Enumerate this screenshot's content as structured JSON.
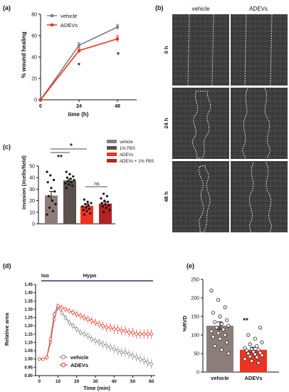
{
  "chart_data": [
    {
      "panel": "(a)",
      "type": "line",
      "xlabel": "time (h)",
      "ylabel": "% wound healing",
      "x": [
        0,
        24,
        48
      ],
      "xlim": [
        0,
        60
      ],
      "ylim": [
        0,
        80
      ],
      "xticks": [
        "0",
        "24",
        "48"
      ],
      "yticks": [
        "0",
        "20",
        "40",
        "60",
        "80"
      ],
      "legend_position": "top-left",
      "series": [
        {
          "name": "vehicle",
          "color": "#808080",
          "values": [
            0,
            51,
            68
          ],
          "err": [
            0,
            2.5,
            2.5
          ]
        },
        {
          "name": "ADEVs",
          "color": "#ee3322",
          "values": [
            0,
            46,
            57
          ],
          "err": [
            0,
            2.5,
            3
          ]
        }
      ],
      "annotations": [
        "*",
        "*"
      ]
    },
    {
      "panel": "(b)",
      "type": "image_grid",
      "columns": [
        "vehicle",
        "ADEVs"
      ],
      "rows": [
        "0 h",
        "24 h",
        "48 h"
      ]
    },
    {
      "panel": "(c)",
      "type": "bar",
      "ylabel": "invasion (#cells/field)",
      "ylim": [
        0,
        50
      ],
      "yticks": [
        "0",
        "10",
        "20",
        "30",
        "40",
        "50"
      ],
      "legend_position": "top-right",
      "categories": [
        "vehicle",
        "1% FBS",
        "ADEVs",
        "ADEVs + 1% FBS"
      ],
      "colors": [
        "#8c7d78",
        "#5a504c",
        "#ee3322",
        "#b32323"
      ],
      "values": [
        24.5,
        37.5,
        15.5,
        17.5
      ],
      "err": [
        3.5,
        1.2,
        1.8,
        1.5
      ],
      "points": [
        [
          45,
          42,
          38,
          36,
          31,
          28,
          24,
          20,
          17,
          14,
          11,
          8
        ],
        [
          45,
          43,
          41,
          40,
          39,
          38,
          37,
          36,
          35,
          34,
          33,
          31
        ],
        [
          21,
          19,
          18,
          17,
          16,
          15,
          14,
          13,
          12,
          11,
          9,
          8
        ],
        [
          26,
          24,
          22,
          20,
          19,
          18,
          17,
          16,
          15,
          14,
          12,
          10
        ]
      ],
      "annotations": [
        {
          "text": "**"
        },
        {
          "text": "*"
        },
        {
          "text": "ns"
        }
      ]
    },
    {
      "panel": "(d)",
      "type": "line",
      "xlabel": "Time (min)",
      "ylabel": "Relative area",
      "xlim": [
        -2,
        62
      ],
      "ylim": [
        0.9,
        1.45
      ],
      "xticks": [
        "0",
        "10",
        "20",
        "30",
        "40",
        "50",
        "60"
      ],
      "yticks": [
        "0.90",
        "0.95",
        "1.00",
        "1.05",
        "1.10",
        "1.15",
        "1.20",
        "1.25",
        "1.30",
        "1.35",
        "1.40",
        "1.45"
      ],
      "legend_position": "bottom-left",
      "condition_bar": {
        "labels": [
          "Iso",
          "Hypo"
        ],
        "color": "#3a2a8a"
      },
      "x": [
        0,
        2,
        4,
        6,
        8,
        10,
        12,
        14,
        16,
        18,
        20,
        22,
        24,
        26,
        28,
        30,
        32,
        34,
        36,
        38,
        40,
        42,
        44,
        46,
        48,
        50,
        52,
        54,
        56,
        58,
        60
      ],
      "series": [
        {
          "name": "vehicle",
          "color": "#808080",
          "values": [
            1.0,
            1.0,
            1.01,
            1.1,
            1.24,
            1.31,
            1.28,
            1.25,
            1.22,
            1.2,
            1.18,
            1.16,
            1.15,
            1.14,
            1.12,
            1.11,
            1.1,
            1.09,
            1.08,
            1.07,
            1.06,
            1.05,
            1.04,
            1.04,
            1.03,
            1.02,
            1.01,
            1.0,
            0.99,
            0.98,
            0.97
          ]
        },
        {
          "name": "ADEVs",
          "color": "#ee3322",
          "values": [
            1.0,
            1.0,
            1.01,
            1.12,
            1.27,
            1.32,
            1.31,
            1.3,
            1.29,
            1.28,
            1.27,
            1.26,
            1.25,
            1.24,
            1.23,
            1.22,
            1.21,
            1.2,
            1.19,
            1.19,
            1.18,
            1.18,
            1.17,
            1.17,
            1.16,
            1.16,
            1.15,
            1.15,
            1.15,
            1.15,
            1.15
          ]
        }
      ]
    },
    {
      "panel": "(e)",
      "type": "bar",
      "ylabel": "%RVD",
      "ylim": [
        0,
        250
      ],
      "yticks": [
        "0",
        "50",
        "100",
        "150",
        "200",
        "250"
      ],
      "categories": [
        "vehicle",
        "ADEVs"
      ],
      "colors": [
        "#8c7d78",
        "#ee3322"
      ],
      "values": [
        125,
        60
      ],
      "err": [
        10,
        7
      ],
      "points": [
        [
          220,
          195,
          175,
          160,
          150,
          140,
          135,
          130,
          125,
          120,
          115,
          110,
          105,
          100,
          95,
          90,
          80,
          70,
          60,
          50
        ],
        [
          120,
          100,
          90,
          80,
          75,
          70,
          65,
          62,
          60,
          58,
          55,
          52,
          50,
          48,
          45,
          42,
          40,
          35,
          30,
          25
        ]
      ],
      "annotations": [
        "**"
      ]
    }
  ]
}
